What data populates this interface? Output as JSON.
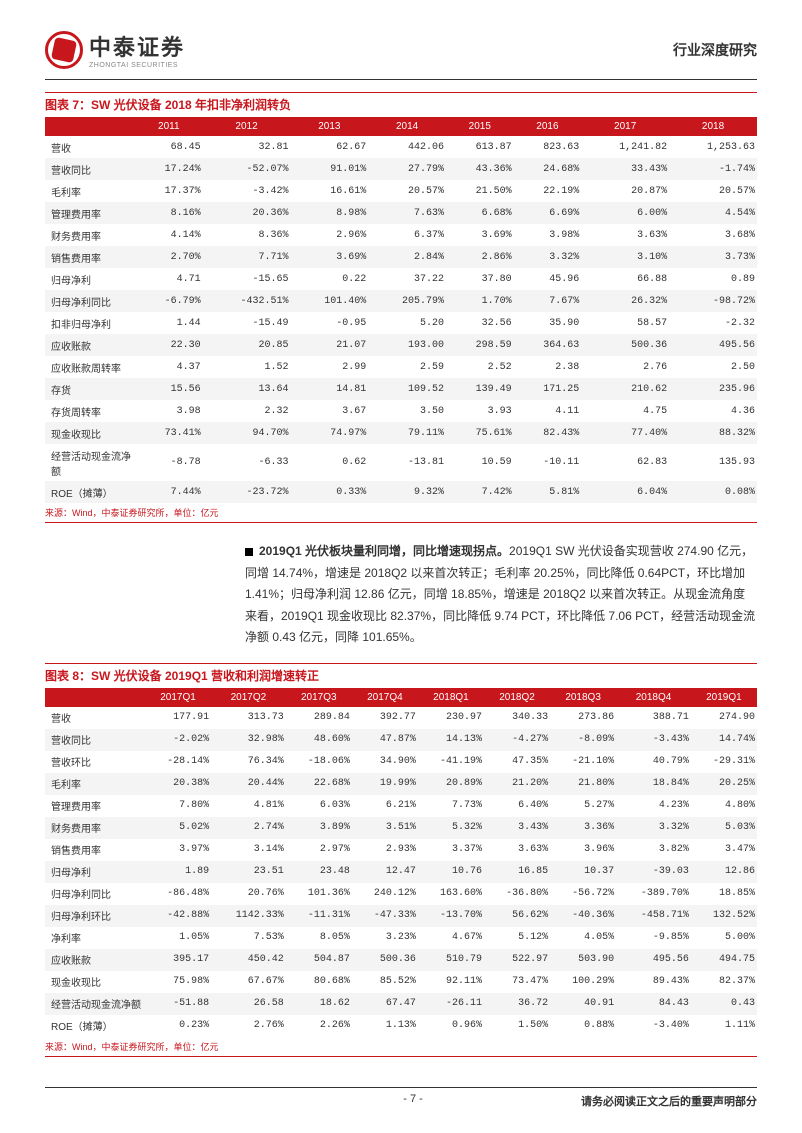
{
  "header": {
    "logo_cn": "中泰证券",
    "logo_en": "ZHONGTAI SECURITIES",
    "right": "行业深度研究"
  },
  "chart7": {
    "title": "图表 7：SW 光伏设备 2018 年扣非净利润转负",
    "columns": [
      "",
      "2011",
      "2012",
      "2013",
      "2014",
      "2015",
      "2016",
      "2017",
      "2018"
    ],
    "rows": [
      [
        "营收",
        "68.45",
        "32.81",
        "62.67",
        "442.06",
        "613.87",
        "823.63",
        "1,241.82",
        "1,253.63"
      ],
      [
        "营收同比",
        "17.24%",
        "-52.07%",
        "91.01%",
        "27.79%",
        "43.36%",
        "24.68%",
        "33.43%",
        "-1.74%"
      ],
      [
        "毛利率",
        "17.37%",
        "-3.42%",
        "16.61%",
        "20.57%",
        "21.50%",
        "22.19%",
        "20.87%",
        "20.57%"
      ],
      [
        "管理费用率",
        "8.16%",
        "20.36%",
        "8.98%",
        "7.63%",
        "6.68%",
        "6.69%",
        "6.00%",
        "4.54%"
      ],
      [
        "财务费用率",
        "4.14%",
        "8.36%",
        "2.96%",
        "6.37%",
        "3.69%",
        "3.98%",
        "3.63%",
        "3.68%"
      ],
      [
        "销售费用率",
        "2.70%",
        "7.71%",
        "3.69%",
        "2.84%",
        "2.86%",
        "3.32%",
        "3.10%",
        "3.73%"
      ],
      [
        "归母净利",
        "4.71",
        "-15.65",
        "0.22",
        "37.22",
        "37.80",
        "45.96",
        "66.88",
        "0.89"
      ],
      [
        "归母净利同比",
        "-6.79%",
        "-432.51%",
        "101.40%",
        "205.79%",
        "1.70%",
        "7.67%",
        "26.32%",
        "-98.72%"
      ],
      [
        "扣非归母净利",
        "1.44",
        "-15.49",
        "-0.95",
        "5.20",
        "32.56",
        "35.90",
        "58.57",
        "-2.32"
      ],
      [
        "应收账款",
        "22.30",
        "20.85",
        "21.07",
        "193.00",
        "298.59",
        "364.63",
        "500.36",
        "495.56"
      ],
      [
        "应收账款周转率",
        "4.37",
        "1.52",
        "2.99",
        "2.59",
        "2.52",
        "2.38",
        "2.76",
        "2.50"
      ],
      [
        "存货",
        "15.56",
        "13.64",
        "14.81",
        "109.52",
        "139.49",
        "171.25",
        "210.62",
        "235.96"
      ],
      [
        "存货周转率",
        "3.98",
        "2.32",
        "3.67",
        "3.50",
        "3.93",
        "4.11",
        "4.75",
        "4.36"
      ],
      [
        "现金收现比",
        "73.41%",
        "94.70%",
        "74.97%",
        "79.11%",
        "75.61%",
        "82.43%",
        "77.40%",
        "88.32%"
      ],
      [
        "经营活动现金流净额",
        "-8.78",
        "-6.33",
        "0.62",
        "-13.81",
        "10.59",
        "-10.11",
        "62.83",
        "135.93"
      ],
      [
        "ROE（摊薄）",
        "7.44%",
        "-23.72%",
        "0.33%",
        "9.32%",
        "7.42%",
        "5.81%",
        "6.04%",
        "0.08%"
      ]
    ],
    "source": "来源：Wind，中泰证券研究所，单位：亿元"
  },
  "paragraph": {
    "bold_lead": "2019Q1 光伏板块量利同增，同比增速现拐点。",
    "body": "2019Q1 SW 光伏设备实现营收 274.90 亿元，同增 14.74%，增速是 2018Q2 以来首次转正；毛利率 20.25%，同比降低 0.64PCT，环比增加 1.41%；归母净利润 12.86 亿元，同增 18.85%，增速是 2018Q2 以来首次转正。从现金流角度来看，2019Q1 现金收现比 82.37%，同比降低 9.74 PCT，环比降低 7.06 PCT，经营活动现金流净额 0.43 亿元，同降 101.65%。"
  },
  "chart8": {
    "title": "图表 8：SW 光伏设备 2019Q1 营收和利润增速转正",
    "columns": [
      "",
      "2017Q1",
      "2017Q2",
      "2017Q3",
      "2017Q4",
      "2018Q1",
      "2018Q2",
      "2018Q3",
      "2018Q4",
      "2019Q1"
    ],
    "rows": [
      [
        "营收",
        "177.91",
        "313.73",
        "289.84",
        "392.77",
        "230.97",
        "340.33",
        "273.86",
        "388.71",
        "274.90"
      ],
      [
        "营收同比",
        "-2.02%",
        "32.98%",
        "48.60%",
        "47.87%",
        "14.13%",
        "-4.27%",
        "-8.09%",
        "-3.43%",
        "14.74%"
      ],
      [
        "营收环比",
        "-28.14%",
        "76.34%",
        "-18.06%",
        "34.90%",
        "-41.19%",
        "47.35%",
        "-21.10%",
        "40.79%",
        "-29.31%"
      ],
      [
        "毛利率",
        "20.38%",
        "20.44%",
        "22.68%",
        "19.99%",
        "20.89%",
        "21.20%",
        "21.80%",
        "18.84%",
        "20.25%"
      ],
      [
        "管理费用率",
        "7.80%",
        "4.81%",
        "6.03%",
        "6.21%",
        "7.73%",
        "6.40%",
        "5.27%",
        "4.23%",
        "4.80%"
      ],
      [
        "财务费用率",
        "5.02%",
        "2.74%",
        "3.89%",
        "3.51%",
        "5.32%",
        "3.43%",
        "3.36%",
        "3.32%",
        "5.03%"
      ],
      [
        "销售费用率",
        "3.97%",
        "3.14%",
        "2.97%",
        "2.93%",
        "3.37%",
        "3.63%",
        "3.96%",
        "3.82%",
        "3.47%"
      ],
      [
        "归母净利",
        "1.89",
        "23.51",
        "23.48",
        "12.47",
        "10.76",
        "16.85",
        "10.37",
        "-39.03",
        "12.86"
      ],
      [
        "归母净利同比",
        "-86.48%",
        "20.76%",
        "101.36%",
        "240.12%",
        "163.60%",
        "-36.80%",
        "-56.72%",
        "-389.70%",
        "18.85%"
      ],
      [
        "归母净利环比",
        "-42.88%",
        "1142.33%",
        "-11.31%",
        "-47.33%",
        "-13.70%",
        "56.62%",
        "-40.36%",
        "-458.71%",
        "132.52%"
      ],
      [
        "净利率",
        "1.05%",
        "7.53%",
        "8.05%",
        "3.23%",
        "4.67%",
        "5.12%",
        "4.05%",
        "-9.85%",
        "5.00%"
      ],
      [
        "应收账款",
        "395.17",
        "450.42",
        "504.87",
        "500.36",
        "510.79",
        "522.97",
        "503.90",
        "495.56",
        "494.75"
      ],
      [
        "现金收现比",
        "75.98%",
        "67.67%",
        "80.68%",
        "85.52%",
        "92.11%",
        "73.47%",
        "100.29%",
        "89.43%",
        "82.37%"
      ],
      [
        "经营活动现金流净额",
        "-51.88",
        "26.58",
        "18.62",
        "67.47",
        "-26.11",
        "36.72",
        "40.91",
        "84.43",
        "0.43"
      ],
      [
        "ROE（摊薄）",
        "0.23%",
        "2.76%",
        "2.26%",
        "1.13%",
        "0.96%",
        "1.50%",
        "0.88%",
        "-3.40%",
        "1.11%"
      ]
    ],
    "source": "来源：Wind，中泰证券研究所，单位：亿元"
  },
  "footer": {
    "page": "- 7 -",
    "right": "请务必阅读正文之后的重要声明部分"
  }
}
